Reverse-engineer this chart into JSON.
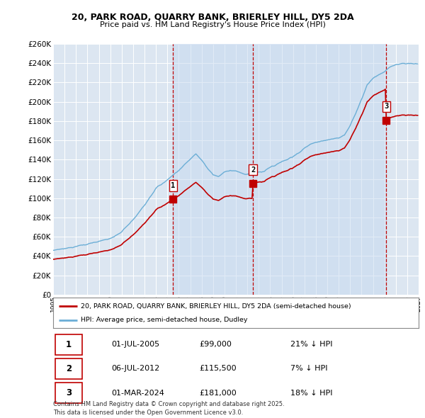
{
  "title": "20, PARK ROAD, QUARRY BANK, BRIERLEY HILL, DY5 2DA",
  "subtitle": "Price paid vs. HM Land Registry's House Price Index (HPI)",
  "ylim": [
    0,
    260000
  ],
  "yticks": [
    0,
    20000,
    40000,
    60000,
    80000,
    100000,
    120000,
    140000,
    160000,
    180000,
    200000,
    220000,
    240000,
    260000
  ],
  "background_color": "#ffffff",
  "plot_bg_color": "#dce6f1",
  "grid_color": "#ffffff",
  "line_color_hpi": "#6baed6",
  "line_color_price": "#c00000",
  "sale_marker_color": "#c00000",
  "purchases": [
    {
      "date_num": 2005.5,
      "price": 99000,
      "label": "1"
    },
    {
      "date_num": 2012.5,
      "price": 115500,
      "label": "2"
    },
    {
      "date_num": 2024.17,
      "price": 181000,
      "label": "3"
    }
  ],
  "legend_label_price": "20, PARK ROAD, QUARRY BANK, BRIERLEY HILL, DY5 2DA (semi-detached house)",
  "legend_label_hpi": "HPI: Average price, semi-detached house, Dudley",
  "table_rows": [
    [
      "1",
      "01-JUL-2005",
      "£99,000",
      "21% ↓ HPI"
    ],
    [
      "2",
      "06-JUL-2012",
      "£115,500",
      "7% ↓ HPI"
    ],
    [
      "3",
      "01-MAR-2024",
      "£181,000",
      "18% ↓ HPI"
    ]
  ],
  "footer": "Contains HM Land Registry data © Crown copyright and database right 2025.\nThis data is licensed under the Open Government Licence v3.0.",
  "xmin": 1995,
  "xmax": 2027
}
